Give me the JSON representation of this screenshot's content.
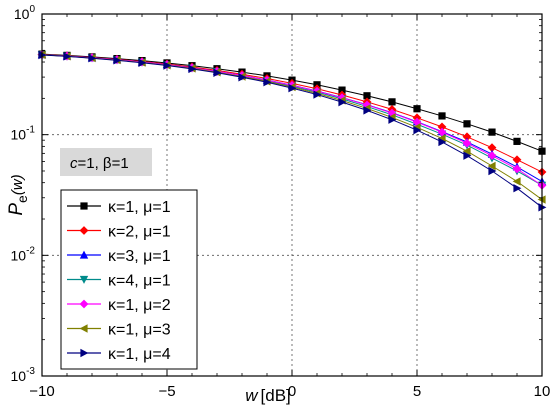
{
  "chart_data": {
    "type": "line",
    "xlabel_var": "w",
    "xlabel_unit": "[dB]",
    "ylabel_main": "P",
    "ylabel_sub": "e",
    "ylabel_arg": "(w)",
    "x_scale": "linear",
    "y_scale": "log",
    "xlim": [
      -10,
      10
    ],
    "ylim": [
      0.001,
      1
    ],
    "x_ticks": [
      -10,
      -5,
      0,
      5,
      10
    ],
    "x_tick_labels": [
      "−10",
      "−5",
      "0",
      "5",
      "10"
    ],
    "y_ticks": [
      0.001,
      0.01,
      0.1,
      1
    ],
    "y_tick_labels": [
      {
        "base": "10",
        "exp": "-3"
      },
      {
        "base": "10",
        "exp": "-2"
      },
      {
        "base": "10",
        "exp": "-1"
      },
      {
        "base": "10",
        "exp": "0"
      }
    ],
    "grid": true,
    "grid_style": "dotted",
    "legend_position": "bottom-left",
    "annotation": {
      "c_label": "c",
      "c_value": "=1, β=1"
    },
    "x": [
      -10,
      -9,
      -8,
      -7,
      -6,
      -5,
      -4,
      -3,
      -2,
      -1,
      0,
      1,
      2,
      3,
      4,
      5,
      6,
      7,
      8,
      9,
      10
    ],
    "series": [
      {
        "name": "κ=1, μ=1",
        "color": "#000000",
        "marker": "square",
        "values": [
          0.465,
          0.454,
          0.441,
          0.427,
          0.411,
          0.393,
          0.373,
          0.352,
          0.33,
          0.307,
          0.283,
          0.259,
          0.234,
          0.21,
          0.187,
          0.164,
          0.143,
          0.123,
          0.105,
          0.088,
          0.073
        ]
      },
      {
        "name": "κ=2, μ=1",
        "color": "#ff0000",
        "marker": "diamond",
        "values": [
          0.462,
          0.45,
          0.436,
          0.421,
          0.404,
          0.385,
          0.364,
          0.341,
          0.317,
          0.292,
          0.266,
          0.24,
          0.213,
          0.187,
          0.162,
          0.138,
          0.116,
          0.096,
          0.078,
          0.062,
          0.049
        ]
      },
      {
        "name": "κ=3, μ=1",
        "color": "#0000ff",
        "marker": "triangle-up",
        "values": [
          0.46,
          0.448,
          0.434,
          0.418,
          0.4,
          0.381,
          0.359,
          0.335,
          0.31,
          0.284,
          0.257,
          0.23,
          0.203,
          0.177,
          0.152,
          0.128,
          0.106,
          0.087,
          0.069,
          0.054,
          0.041
        ]
      },
      {
        "name": "κ=4, μ=1",
        "color": "#008b8b",
        "marker": "triangle-down",
        "values": [
          0.459,
          0.447,
          0.432,
          0.416,
          0.398,
          0.378,
          0.356,
          0.332,
          0.306,
          0.28,
          0.252,
          0.225,
          0.198,
          0.171,
          0.146,
          0.122,
          0.101,
          0.082,
          0.064,
          0.05,
          0.038
        ]
      },
      {
        "name": "κ=1, μ=2",
        "color": "#ff00ff",
        "marker": "diamond",
        "values": [
          0.46,
          0.448,
          0.434,
          0.418,
          0.4,
          0.38,
          0.358,
          0.334,
          0.309,
          0.283,
          0.256,
          0.229,
          0.202,
          0.176,
          0.151,
          0.127,
          0.105,
          0.085,
          0.067,
          0.052,
          0.038
        ]
      },
      {
        "name": "κ=1, μ=3",
        "color": "#808000",
        "marker": "triangle-left",
        "values": [
          0.458,
          0.446,
          0.431,
          0.415,
          0.396,
          0.376,
          0.354,
          0.329,
          0.303,
          0.276,
          0.248,
          0.22,
          0.192,
          0.165,
          0.139,
          0.115,
          0.093,
          0.073,
          0.055,
          0.041,
          0.029
        ]
      },
      {
        "name": "κ=1, μ=4",
        "color": "#000080",
        "marker": "triangle-right",
        "values": [
          0.457,
          0.445,
          0.43,
          0.413,
          0.394,
          0.374,
          0.351,
          0.326,
          0.299,
          0.272,
          0.243,
          0.215,
          0.186,
          0.159,
          0.133,
          0.109,
          0.087,
          0.067,
          0.05,
          0.036,
          0.025
        ]
      }
    ]
  }
}
